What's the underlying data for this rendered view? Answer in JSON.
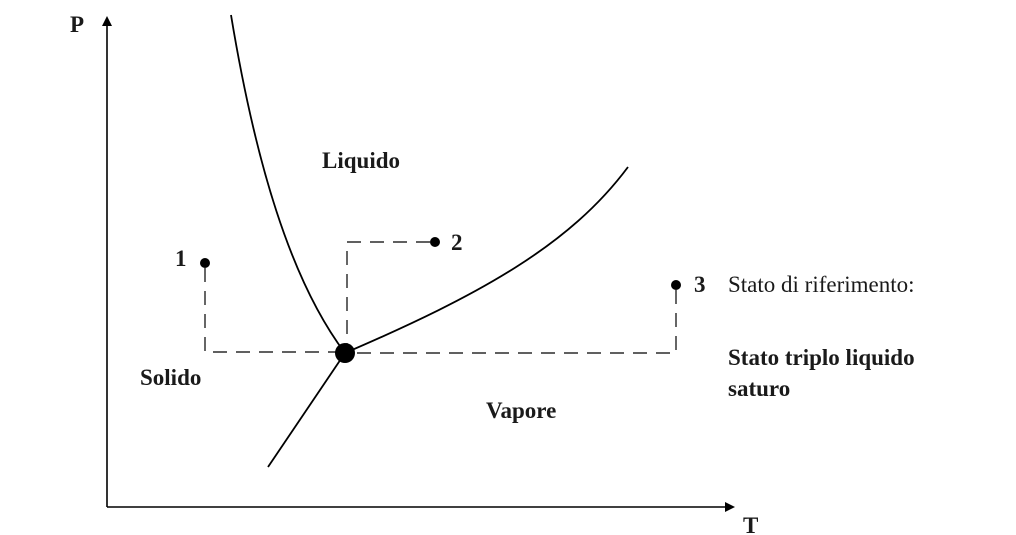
{
  "axes": {
    "y_label": "P",
    "x_label": "T"
  },
  "regions": {
    "liquid": {
      "label": "Liquido",
      "color": "#0a0a7a"
    },
    "solid": {
      "label": "Solido",
      "color": "#333333"
    },
    "vapor": {
      "label": "Vapore",
      "color": "#88c4f0"
    }
  },
  "points": [
    {
      "label": "1"
    },
    {
      "label": "2"
    },
    {
      "label": "3"
    }
  ],
  "reference": {
    "caption": "Stato di riferimento:",
    "line1": "Stato triplo liquido",
    "line2": "saturo"
  }
}
